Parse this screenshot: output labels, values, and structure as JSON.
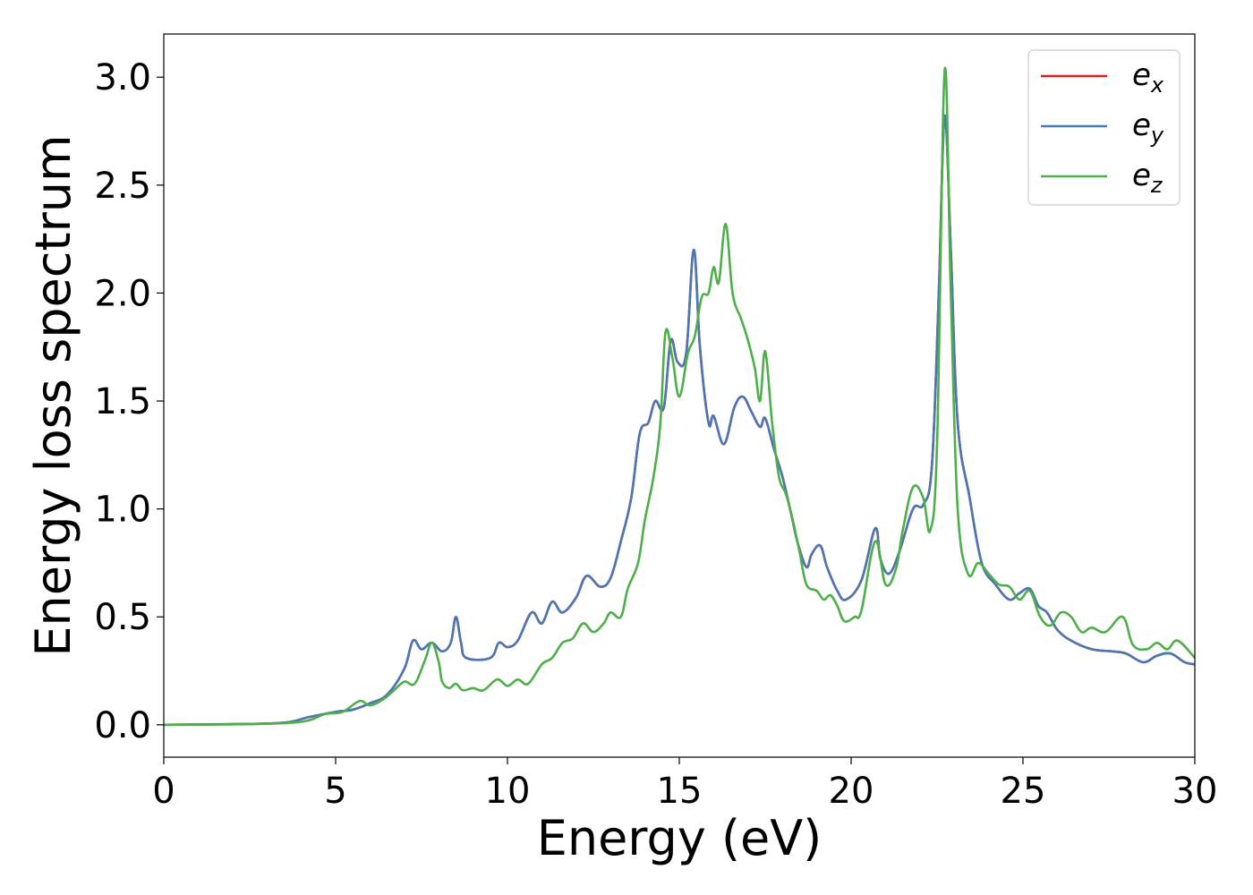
{
  "chart_data": {
    "type": "line",
    "title": "",
    "xlabel": "Energy (eV)",
    "ylabel": "Energy loss spectrum",
    "xlim": [
      0,
      30
    ],
    "ylim": [
      -0.15,
      3.2
    ],
    "xticks": [
      0,
      5,
      10,
      15,
      20,
      25,
      30
    ],
    "yticks": [
      0.0,
      0.5,
      1.0,
      1.5,
      2.0,
      2.5,
      3.0
    ],
    "xtick_labels": [
      "0",
      "5",
      "10",
      "15",
      "20",
      "25",
      "30"
    ],
    "ytick_labels": [
      "0.0",
      "0.5",
      "1.0",
      "1.5",
      "2.0",
      "2.5",
      "3.0"
    ],
    "grid": false,
    "legend_position": "top-right",
    "series": [
      {
        "name": "e_x",
        "legend_base": "e",
        "legend_sub": "x",
        "color": "#e41a1c",
        "points": [
          [
            0,
            0
          ],
          [
            2,
            0.003
          ],
          [
            3.5,
            0.01
          ],
          [
            4.2,
            0.035
          ],
          [
            5,
            0.06
          ],
          [
            5.5,
            0.07
          ],
          [
            6,
            0.1
          ],
          [
            6.5,
            0.14
          ],
          [
            7,
            0.26
          ],
          [
            7.25,
            0.39
          ],
          [
            7.5,
            0.35
          ],
          [
            7.8,
            0.38
          ],
          [
            8.1,
            0.34
          ],
          [
            8.35,
            0.38
          ],
          [
            8.5,
            0.5
          ],
          [
            8.65,
            0.38
          ],
          [
            8.8,
            0.31
          ],
          [
            9.5,
            0.31
          ],
          [
            9.75,
            0.38
          ],
          [
            10,
            0.36
          ],
          [
            10.3,
            0.39
          ],
          [
            10.7,
            0.52
          ],
          [
            11,
            0.47
          ],
          [
            11.3,
            0.57
          ],
          [
            11.6,
            0.52
          ],
          [
            12,
            0.59
          ],
          [
            12.3,
            0.69
          ],
          [
            12.7,
            0.64
          ],
          [
            13,
            0.68
          ],
          [
            13.3,
            0.85
          ],
          [
            13.6,
            1.05
          ],
          [
            13.85,
            1.35
          ],
          [
            14.1,
            1.4
          ],
          [
            14.3,
            1.5
          ],
          [
            14.55,
            1.47
          ],
          [
            14.75,
            1.78
          ],
          [
            14.95,
            1.68
          ],
          [
            15.2,
            1.72
          ],
          [
            15.42,
            2.2
          ],
          [
            15.6,
            1.75
          ],
          [
            15.85,
            1.4
          ],
          [
            16,
            1.43
          ],
          [
            16.3,
            1.3
          ],
          [
            16.6,
            1.47
          ],
          [
            16.85,
            1.52
          ],
          [
            17.1,
            1.45
          ],
          [
            17.35,
            1.38
          ],
          [
            17.5,
            1.42
          ],
          [
            17.75,
            1.28
          ],
          [
            18,
            1.15
          ],
          [
            18.25,
            0.98
          ],
          [
            18.45,
            0.84
          ],
          [
            18.7,
            0.73
          ],
          [
            18.85,
            0.79
          ],
          [
            19.1,
            0.83
          ],
          [
            19.3,
            0.73
          ],
          [
            19.6,
            0.62
          ],
          [
            19.85,
            0.58
          ],
          [
            20.3,
            0.67
          ],
          [
            20.7,
            0.91
          ],
          [
            20.85,
            0.77
          ],
          [
            21.1,
            0.7
          ],
          [
            21.4,
            0.8
          ],
          [
            21.8,
            1.0
          ],
          [
            22.1,
            1.02
          ],
          [
            22.35,
            1.2
          ],
          [
            22.55,
            2.0
          ],
          [
            22.72,
            2.82
          ],
          [
            22.9,
            2.2
          ],
          [
            23.1,
            1.4
          ],
          [
            23.45,
            1.05
          ],
          [
            23.8,
            0.75
          ],
          [
            24.2,
            0.65
          ],
          [
            24.6,
            0.58
          ],
          [
            24.9,
            0.61
          ],
          [
            25.2,
            0.63
          ],
          [
            25.45,
            0.55
          ],
          [
            25.7,
            0.52
          ],
          [
            26,
            0.44
          ],
          [
            26.4,
            0.39
          ],
          [
            27,
            0.35
          ],
          [
            27.6,
            0.34
          ],
          [
            28,
            0.33
          ],
          [
            28.5,
            0.29
          ],
          [
            28.9,
            0.32
          ],
          [
            29.3,
            0.33
          ],
          [
            29.7,
            0.29
          ],
          [
            30,
            0.28
          ]
        ]
      },
      {
        "name": "e_y",
        "legend_base": "e",
        "legend_sub": "y",
        "color": "#4a78b5",
        "points": [
          [
            0,
            0
          ],
          [
            2,
            0.003
          ],
          [
            3.5,
            0.01
          ],
          [
            4.2,
            0.035
          ],
          [
            5,
            0.06
          ],
          [
            5.5,
            0.07
          ],
          [
            6,
            0.1
          ],
          [
            6.5,
            0.14
          ],
          [
            7,
            0.26
          ],
          [
            7.25,
            0.39
          ],
          [
            7.5,
            0.35
          ],
          [
            7.8,
            0.38
          ],
          [
            8.1,
            0.34
          ],
          [
            8.35,
            0.38
          ],
          [
            8.5,
            0.5
          ],
          [
            8.65,
            0.38
          ],
          [
            8.8,
            0.31
          ],
          [
            9.5,
            0.31
          ],
          [
            9.75,
            0.38
          ],
          [
            10,
            0.36
          ],
          [
            10.3,
            0.39
          ],
          [
            10.7,
            0.52
          ],
          [
            11,
            0.47
          ],
          [
            11.3,
            0.57
          ],
          [
            11.6,
            0.52
          ],
          [
            12,
            0.59
          ],
          [
            12.3,
            0.69
          ],
          [
            12.7,
            0.64
          ],
          [
            13,
            0.68
          ],
          [
            13.3,
            0.85
          ],
          [
            13.6,
            1.05
          ],
          [
            13.85,
            1.35
          ],
          [
            14.1,
            1.4
          ],
          [
            14.3,
            1.5
          ],
          [
            14.55,
            1.47
          ],
          [
            14.75,
            1.78
          ],
          [
            14.95,
            1.68
          ],
          [
            15.2,
            1.72
          ],
          [
            15.42,
            2.2
          ],
          [
            15.6,
            1.75
          ],
          [
            15.85,
            1.4
          ],
          [
            16,
            1.43
          ],
          [
            16.3,
            1.3
          ],
          [
            16.6,
            1.47
          ],
          [
            16.85,
            1.52
          ],
          [
            17.1,
            1.45
          ],
          [
            17.35,
            1.38
          ],
          [
            17.5,
            1.42
          ],
          [
            17.75,
            1.28
          ],
          [
            18,
            1.15
          ],
          [
            18.25,
            0.98
          ],
          [
            18.45,
            0.84
          ],
          [
            18.7,
            0.73
          ],
          [
            18.85,
            0.79
          ],
          [
            19.1,
            0.83
          ],
          [
            19.3,
            0.73
          ],
          [
            19.6,
            0.62
          ],
          [
            19.85,
            0.58
          ],
          [
            20.3,
            0.67
          ],
          [
            20.7,
            0.91
          ],
          [
            20.85,
            0.77
          ],
          [
            21.1,
            0.7
          ],
          [
            21.4,
            0.8
          ],
          [
            21.8,
            1.0
          ],
          [
            22.1,
            1.02
          ],
          [
            22.35,
            1.2
          ],
          [
            22.55,
            2.0
          ],
          [
            22.72,
            2.82
          ],
          [
            22.9,
            2.2
          ],
          [
            23.1,
            1.4
          ],
          [
            23.45,
            1.05
          ],
          [
            23.8,
            0.75
          ],
          [
            24.2,
            0.65
          ],
          [
            24.6,
            0.58
          ],
          [
            24.9,
            0.61
          ],
          [
            25.2,
            0.63
          ],
          [
            25.45,
            0.55
          ],
          [
            25.7,
            0.52
          ],
          [
            26,
            0.44
          ],
          [
            26.4,
            0.39
          ],
          [
            27,
            0.35
          ],
          [
            27.6,
            0.34
          ],
          [
            28,
            0.33
          ],
          [
            28.5,
            0.29
          ],
          [
            28.9,
            0.32
          ],
          [
            29.3,
            0.33
          ],
          [
            29.7,
            0.29
          ],
          [
            30,
            0.28
          ]
        ]
      },
      {
        "name": "e_z",
        "legend_base": "e",
        "legend_sub": "z",
        "color": "#4daf4a",
        "points": [
          [
            0,
            0
          ],
          [
            2,
            0.002
          ],
          [
            3.5,
            0.008
          ],
          [
            4.2,
            0.02
          ],
          [
            4.7,
            0.05
          ],
          [
            5.2,
            0.06
          ],
          [
            5.7,
            0.11
          ],
          [
            6,
            0.09
          ],
          [
            6.4,
            0.12
          ],
          [
            6.7,
            0.16
          ],
          [
            7,
            0.2
          ],
          [
            7.3,
            0.19
          ],
          [
            7.6,
            0.3
          ],
          [
            7.8,
            0.38
          ],
          [
            8,
            0.29
          ],
          [
            8.1,
            0.2
          ],
          [
            8.3,
            0.17
          ],
          [
            8.5,
            0.19
          ],
          [
            8.7,
            0.16
          ],
          [
            9,
            0.17
          ],
          [
            9.3,
            0.16
          ],
          [
            9.7,
            0.21
          ],
          [
            10,
            0.18
          ],
          [
            10.3,
            0.21
          ],
          [
            10.6,
            0.19
          ],
          [
            11,
            0.28
          ],
          [
            11.3,
            0.31
          ],
          [
            11.6,
            0.38
          ],
          [
            11.9,
            0.4
          ],
          [
            12.2,
            0.47
          ],
          [
            12.5,
            0.43
          ],
          [
            12.8,
            0.47
          ],
          [
            13,
            0.52
          ],
          [
            13.3,
            0.5
          ],
          [
            13.5,
            0.63
          ],
          [
            13.8,
            0.75
          ],
          [
            14,
            0.95
          ],
          [
            14.25,
            1.15
          ],
          [
            14.45,
            1.4
          ],
          [
            14.6,
            1.82
          ],
          [
            14.8,
            1.7
          ],
          [
            15,
            1.52
          ],
          [
            15.25,
            1.72
          ],
          [
            15.45,
            1.8
          ],
          [
            15.65,
            1.98
          ],
          [
            15.85,
            2.0
          ],
          [
            16,
            2.12
          ],
          [
            16.15,
            2.05
          ],
          [
            16.35,
            2.32
          ],
          [
            16.55,
            2.0
          ],
          [
            16.8,
            1.88
          ],
          [
            17,
            1.78
          ],
          [
            17.2,
            1.65
          ],
          [
            17.35,
            1.5
          ],
          [
            17.5,
            1.73
          ],
          [
            17.7,
            1.4
          ],
          [
            17.9,
            1.15
          ],
          [
            18.1,
            1.07
          ],
          [
            18.3,
            0.95
          ],
          [
            18.5,
            0.8
          ],
          [
            18.7,
            0.65
          ],
          [
            19,
            0.62
          ],
          [
            19.2,
            0.58
          ],
          [
            19.4,
            0.6
          ],
          [
            19.6,
            0.55
          ],
          [
            19.8,
            0.48
          ],
          [
            20.1,
            0.5
          ],
          [
            20.3,
            0.53
          ],
          [
            20.7,
            0.85
          ],
          [
            21,
            0.65
          ],
          [
            21.3,
            0.72
          ],
          [
            21.5,
            0.9
          ],
          [
            21.8,
            1.1
          ],
          [
            22.1,
            1.05
          ],
          [
            22.3,
            0.9
          ],
          [
            22.5,
            1.3
          ],
          [
            22.72,
            3.03
          ],
          [
            22.9,
            2.0
          ],
          [
            23.1,
            1.0
          ],
          [
            23.4,
            0.7
          ],
          [
            23.7,
            0.75
          ],
          [
            24,
            0.7
          ],
          [
            24.3,
            0.65
          ],
          [
            24.6,
            0.64
          ],
          [
            24.9,
            0.58
          ],
          [
            25.2,
            0.62
          ],
          [
            25.5,
            0.5
          ],
          [
            25.8,
            0.46
          ],
          [
            26.1,
            0.52
          ],
          [
            26.4,
            0.5
          ],
          [
            26.7,
            0.43
          ],
          [
            27,
            0.45
          ],
          [
            27.4,
            0.43
          ],
          [
            27.9,
            0.5
          ],
          [
            28.2,
            0.37
          ],
          [
            28.6,
            0.35
          ],
          [
            28.9,
            0.38
          ],
          [
            29.2,
            0.35
          ],
          [
            29.5,
            0.39
          ],
          [
            30,
            0.31
          ]
        ]
      }
    ]
  }
}
